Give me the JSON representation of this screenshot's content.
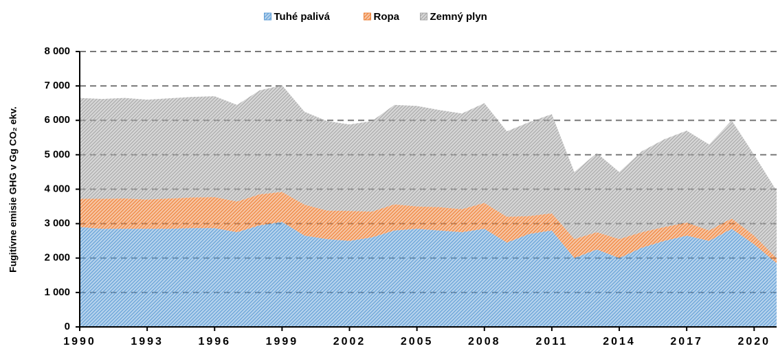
{
  "chart_data": {
    "type": "stacked-area",
    "y_label": "Fugitívne emisie GHG v Gg CO₂ ekv.",
    "x": [
      1990,
      1991,
      1992,
      1993,
      1994,
      1995,
      1996,
      1997,
      1998,
      1999,
      2000,
      2001,
      2002,
      2003,
      2004,
      2005,
      2006,
      2007,
      2008,
      2009,
      2010,
      2011,
      2012,
      2013,
      2014,
      2015,
      2016,
      2017,
      2018,
      2019,
      2020,
      2021
    ],
    "series": [
      {
        "name": "Tuhé palivá",
        "color": "#5b9bd5",
        "values": [
          2900,
          2850,
          2850,
          2850,
          2850,
          2870,
          2870,
          2750,
          2950,
          3050,
          2650,
          2550,
          2500,
          2600,
          2800,
          2850,
          2800,
          2750,
          2850,
          2450,
          2700,
          2800,
          2000,
          2250,
          2000,
          2300,
          2500,
          2650,
          2500,
          2850,
          2400,
          1850
        ]
      },
      {
        "name": "Ropa",
        "color": "#ed7d31",
        "values": [
          820,
          870,
          880,
          850,
          880,
          890,
          900,
          890,
          900,
          870,
          900,
          830,
          870,
          750,
          760,
          650,
          680,
          670,
          750,
          750,
          520,
          500,
          550,
          500,
          550,
          450,
          400,
          380,
          300,
          300,
          250,
          150
        ]
      },
      {
        "name": "Zemný plyn",
        "color": "#a5a5a5",
        "values": [
          2930,
          2900,
          2920,
          2900,
          2910,
          2920,
          2930,
          2810,
          3020,
          3100,
          2700,
          2600,
          2510,
          2630,
          2890,
          2920,
          2820,
          2780,
          2900,
          2480,
          2730,
          2880,
          1950,
          2300,
          1950,
          2350,
          2550,
          2670,
          2500,
          2850,
          2350,
          1950
        ]
      }
    ],
    "xlim": [
      1990,
      2021
    ],
    "xticks": [
      1990,
      1993,
      1996,
      1999,
      2002,
      2005,
      2008,
      2011,
      2014,
      2017,
      2020
    ],
    "ylim": [
      0,
      8000
    ],
    "yticks": [
      0,
      {
        "value": 1000,
        "label": "1 000"
      },
      {
        "value": 2000,
        "label": "2 000"
      },
      {
        "value": 3000,
        "label": "3 000"
      },
      {
        "value": 4000,
        "label": "4 000"
      },
      {
        "value": 5000,
        "label": "5 000"
      },
      {
        "value": 6000,
        "label": "6 000"
      },
      {
        "value": 7000,
        "label": "7 000"
      },
      {
        "value": 8000,
        "label": "8 000"
      }
    ],
    "grid": true,
    "legend": "top"
  }
}
